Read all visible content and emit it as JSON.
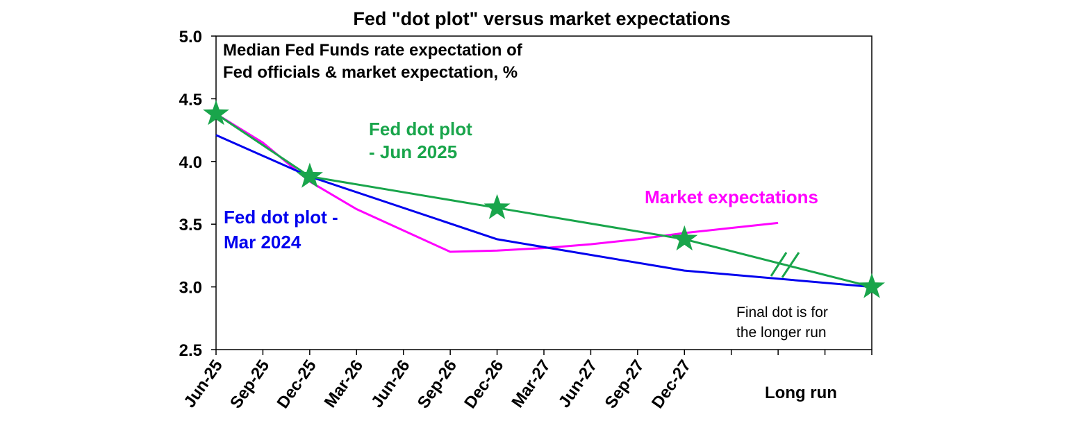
{
  "chart_data": {
    "type": "line",
    "title": "Fed \"dot plot\" versus market expectations",
    "subtitle": [
      "Median Fed Funds rate expectation of",
      "Fed officials & market expectation, %"
    ],
    "xlabel": "",
    "ylabel": "",
    "ylim": [
      2.5,
      5.0
    ],
    "yticks": [
      "2.5",
      "3.0",
      "3.5",
      "4.0",
      "4.5",
      "5.0"
    ],
    "categories": [
      "Jun-25",
      "Sep-25",
      "Dec-25",
      "Mar-26",
      "Jun-26",
      "Sep-26",
      "Dec-26",
      "Mar-27",
      "Jun-27",
      "Sep-27",
      "Dec-27",
      "",
      "",
      "",
      "Long run"
    ],
    "long_run_label": "Long run",
    "grid": false,
    "series": [
      {
        "name": "Market expectations",
        "color": "#ff00ff",
        "x": [
          0,
          1,
          2,
          3,
          4,
          5,
          6,
          7,
          8,
          9,
          10,
          11,
          12
        ],
        "values": [
          4.38,
          4.15,
          3.84,
          3.62,
          3.45,
          3.28,
          3.29,
          3.31,
          3.34,
          3.38,
          3.43,
          3.47,
          3.51
        ]
      },
      {
        "name": "Fed dot plot - Mar 2024",
        "color": "#0000ee",
        "x": [
          0,
          2,
          6,
          10,
          14
        ],
        "values": [
          4.21,
          3.88,
          3.38,
          3.13,
          3.0
        ]
      },
      {
        "name": "Fed dot plot - Jun 2025",
        "color": "#19a54b",
        "x": [
          0,
          2,
          6,
          10,
          14
        ],
        "values": [
          4.38,
          3.88,
          3.63,
          3.38,
          3.0
        ],
        "markers": "star"
      }
    ],
    "annotations": {
      "green_label": [
        "Fed dot plot",
        "- Jun 2025"
      ],
      "blue_label": [
        "Fed dot plot -",
        "Mar 2024"
      ],
      "magenta_label": "Market expectations",
      "final_note": [
        "Final dot is for",
        "the longer run"
      ]
    }
  }
}
